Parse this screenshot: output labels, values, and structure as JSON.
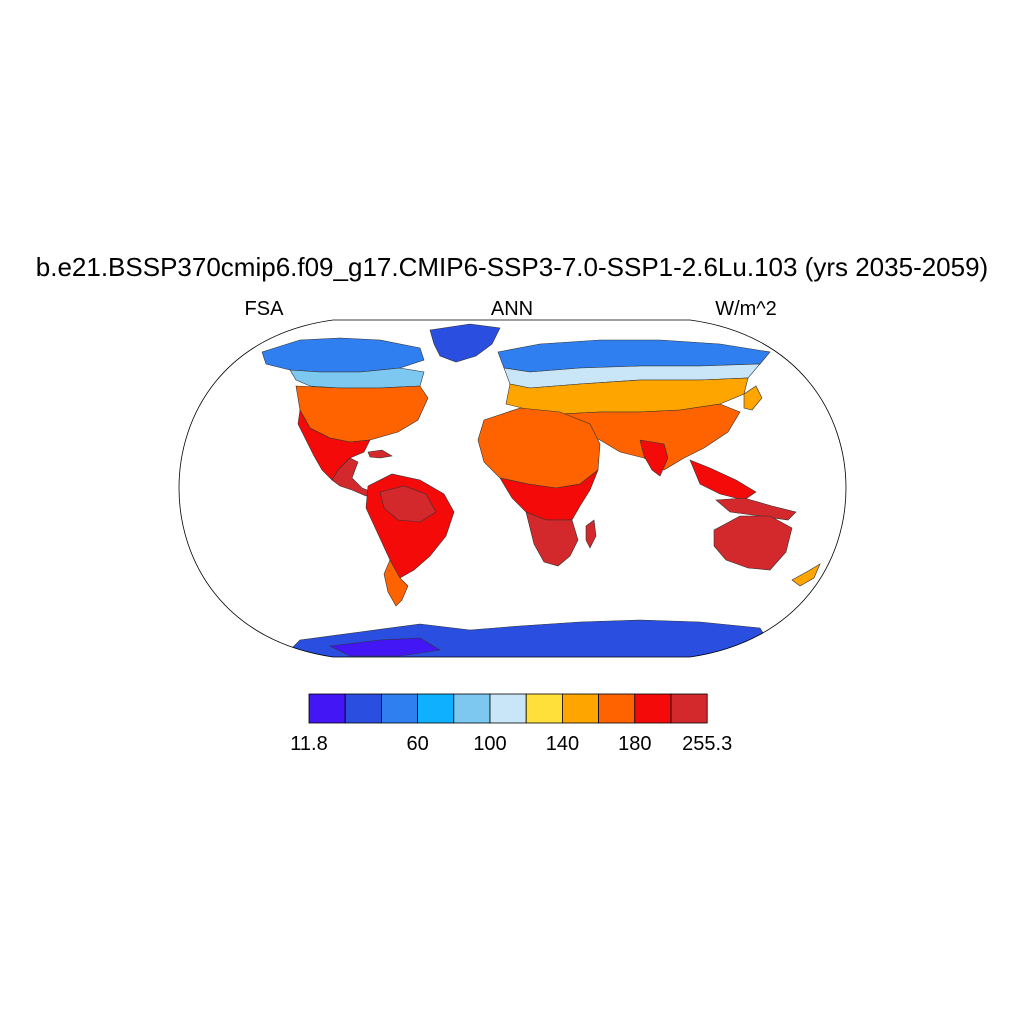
{
  "title": "b.e21.BSSP370cmip6.f09_g17.CMIP6-SSP3-7.0-SSP1-2.6Lu.103 (yrs 2035-2059)",
  "left_label": "FSA",
  "center_label": "ANN",
  "right_label": "W/m^2",
  "colorbar": {
    "colors": [
      "#4316f5",
      "#2a4ee0",
      "#2f7ff0",
      "#0fb1ff",
      "#7cc8f0",
      "#c8e6f8",
      "#ffe03a",
      "#ffa500",
      "#ff6300",
      "#f50a0a",
      "#d3282c"
    ],
    "ticks": [
      {
        "label": "11.8",
        "boundary": 0
      },
      {
        "label": "60",
        "boundary": 3
      },
      {
        "label": "100",
        "boundary": 5
      },
      {
        "label": "140",
        "boundary": 7
      },
      {
        "label": "180",
        "boundary": 9
      },
      {
        "label": "255.3",
        "boundary": 11
      }
    ]
  }
}
